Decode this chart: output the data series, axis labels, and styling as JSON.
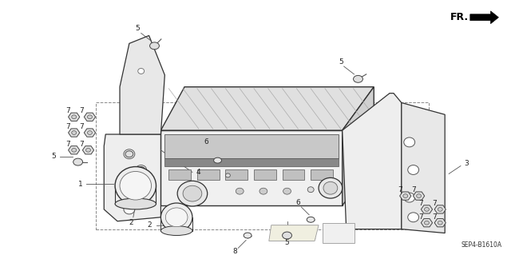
{
  "bg_color": "#ffffff",
  "line_color": "#333333",
  "label_color": "#222222",
  "fr_text": "FR.",
  "part_code": "SEP4-B1610A",
  "figsize": [
    6.4,
    3.19
  ],
  "dpi": 100
}
